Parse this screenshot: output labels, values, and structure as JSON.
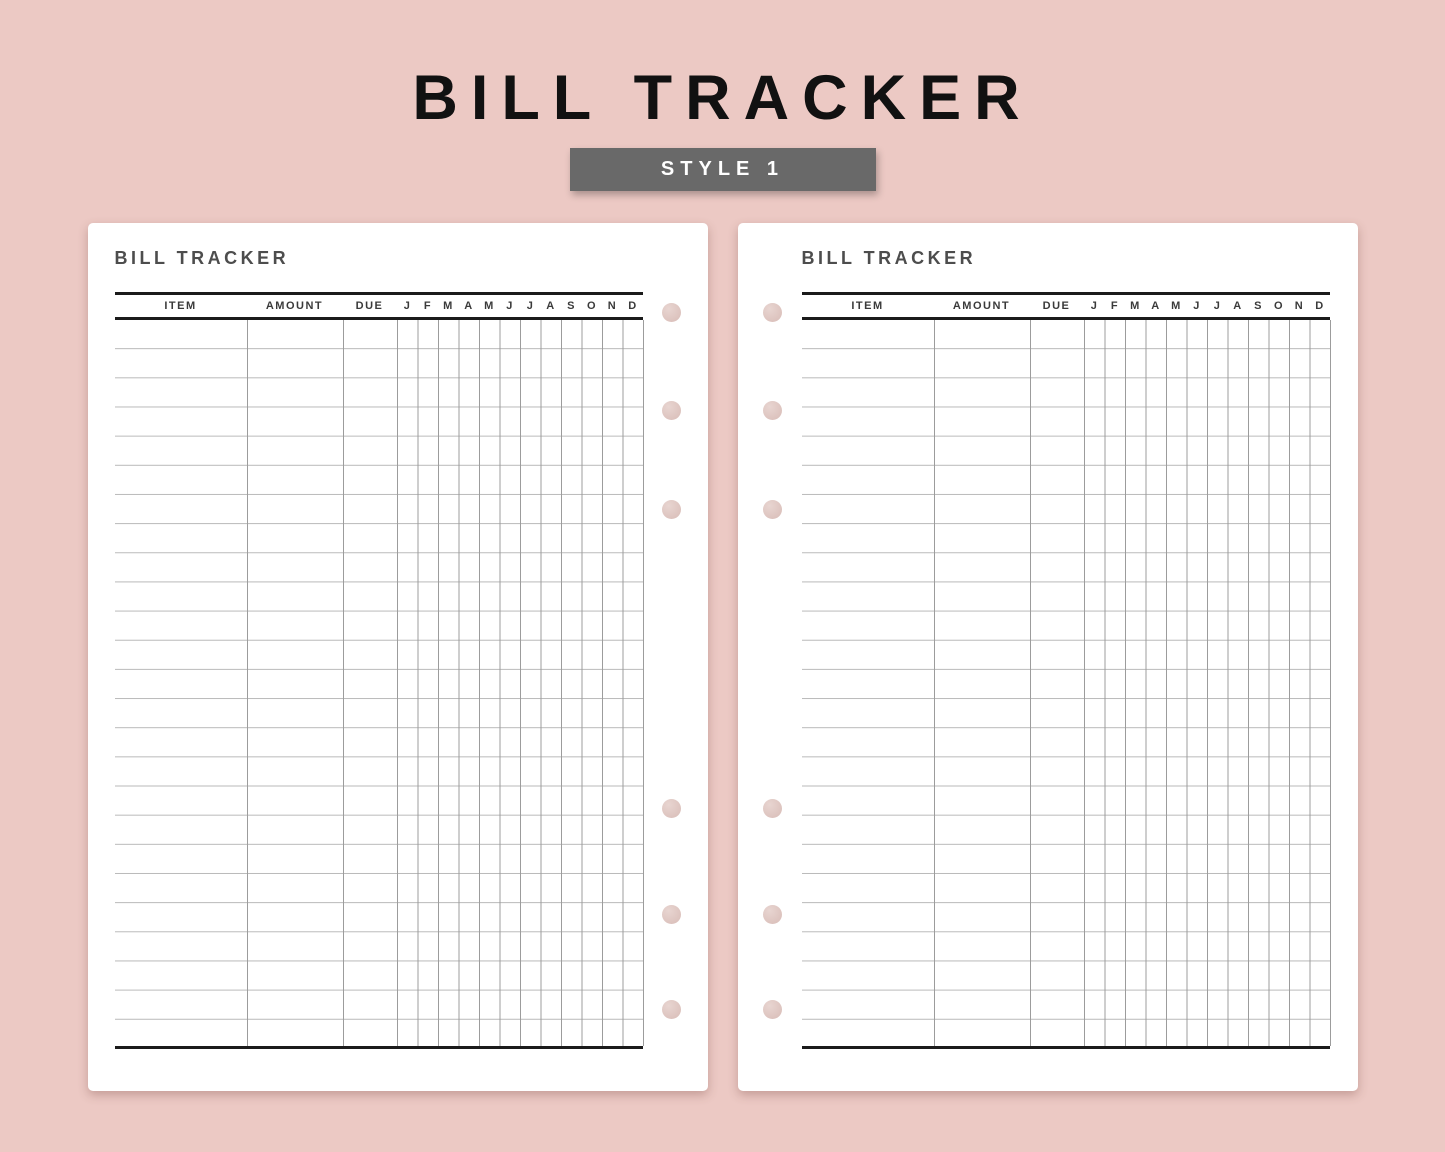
{
  "title": "BILL TRACKER",
  "badge": "STYLE 1",
  "page": {
    "header": "BILL TRACKER",
    "columns": {
      "item": "ITEM",
      "amount": "AMOUNT",
      "due": "DUE"
    },
    "months": [
      "J",
      "F",
      "M",
      "A",
      "M",
      "J",
      "J",
      "A",
      "S",
      "O",
      "N",
      "D"
    ],
    "row_count": 25,
    "holes_per_page": 6
  },
  "colors": {
    "background": "#ecc9c4",
    "page_background": "#ffffff",
    "badge_background": "#696969",
    "badge_text": "#ffffff",
    "title_text": "#111111",
    "page_header_text": "#4d4d4d",
    "column_header_text": "#3a3a3a",
    "rule": "#1b1b1b",
    "row_line": "#b9b9b9",
    "column_line": "#9c9c9c",
    "hole": "#dcc2bd"
  }
}
